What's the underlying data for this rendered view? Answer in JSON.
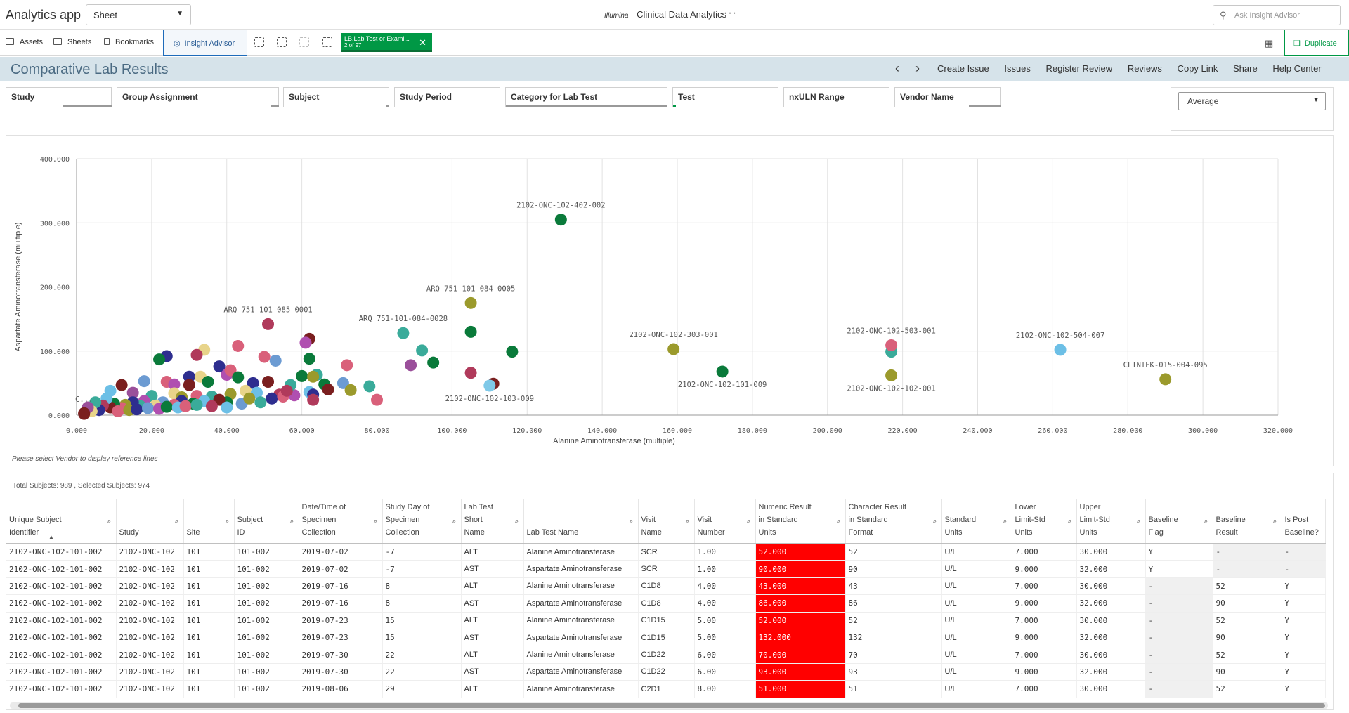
{
  "topbar": {
    "app_title": "Analytics app",
    "sheet_select": "Sheet",
    "logo": "Illumina",
    "center_title": "Clinical Data Analytics",
    "more": "···",
    "ask_placeholder": "Ask Insight Advisor"
  },
  "toolbar": {
    "assets": "Assets",
    "sheets": "Sheets",
    "bookmarks": "Bookmarks",
    "insight_advisor": "Insight Advisor",
    "selection_chip": {
      "title": "LB.Lab Test or Exami...",
      "sub": "2 of 97"
    },
    "duplicate": "Duplicate"
  },
  "sheet": {
    "title": "Comparative Lab Results",
    "links": [
      "Create Issue",
      "Issues",
      "Register Review",
      "Reviews",
      "Copy Link",
      "Share",
      "Help Center"
    ]
  },
  "filters": [
    "Study",
    "Group Assignment",
    "Subject",
    "Study Period",
    "Category for Lab Test",
    "Test",
    "nxULN Range",
    "Vendor Name"
  ],
  "aggregation": {
    "selected": "Average"
  },
  "chart_data": {
    "type": "scatter",
    "xlabel": "Alanine Aminotransferase (multiple)",
    "ylabel": "Aspartate Aminotransferase (multiple)",
    "xlim": [
      0,
      320
    ],
    "ylim": [
      0,
      400
    ],
    "x_ticks": [
      "0.000",
      "20.000",
      "40.000",
      "60.000",
      "80.000",
      "100.000",
      "120.000",
      "140.000",
      "160.000",
      "180.000",
      "200.000",
      "220.000",
      "240.000",
      "260.000",
      "280.000",
      "300.000",
      "320.000"
    ],
    "y_ticks": [
      "0.000",
      "100.000",
      "200.000",
      "300.000",
      "400.000"
    ],
    "grid": true,
    "labeled_points": [
      {
        "label": "2102-ONC-102-402-002",
        "x": 129,
        "y": 305,
        "color": "#0a7a3a",
        "label_pos": "above"
      },
      {
        "label": "ARQ 751-101-085-0001",
        "x": 51,
        "y": 142,
        "color": "#b03a5b",
        "label_pos": "above"
      },
      {
        "label": "ARQ 751-101-084-0028",
        "x": 87,
        "y": 128,
        "color": "#3aab9a",
        "label_pos": "above"
      },
      {
        "label": "ARQ 751-101-084-0005",
        "x": 105,
        "y": 175,
        "color": "#9b9a2c",
        "label_pos": "above"
      },
      {
        "label": "2102-ONC-102-303-001",
        "x": 159,
        "y": 103,
        "color": "#9b9a2c",
        "label_pos": "above"
      },
      {
        "label": "2102-ONC-102-101-009",
        "x": 172,
        "y": 68,
        "color": "#0a7a3a",
        "label_pos": "below"
      },
      {
        "label": "2102-ONC-102-103-009",
        "x": 110,
        "y": 46,
        "color": "#7fc9e8",
        "label_pos": "below"
      },
      {
        "label": "2102-ONC-102-503-001",
        "x": 217,
        "y": 109,
        "color": "#d9607a",
        "label_pos": "above"
      },
      {
        "label": "2102-ONC-102-102-001",
        "x": 217,
        "y": 62,
        "color": "#9b9a2c",
        "label_pos": "below"
      },
      {
        "label": "2102-ONC-102-504-007",
        "x": 262,
        "y": 102,
        "color": "#6cbfe6",
        "label_pos": "above"
      },
      {
        "label": "CLINTEK-015-004-095",
        "x": 290,
        "y": 56,
        "color": "#9b9a2c",
        "label_pos": "above"
      },
      {
        "label": "C...",
        "x": 2,
        "y": 2,
        "color": "#7a1f1f",
        "label_pos": "above"
      }
    ],
    "points": [
      {
        "x": 217,
        "y": 99,
        "color": "#3aab9a"
      },
      {
        "x": 105,
        "y": 130,
        "color": "#0a7a3a"
      },
      {
        "x": 116,
        "y": 99,
        "color": "#0a7a3a"
      },
      {
        "x": 92,
        "y": 101,
        "color": "#3aab9a"
      },
      {
        "x": 95,
        "y": 82,
        "color": "#0a7a3a"
      },
      {
        "x": 89,
        "y": 78,
        "color": "#9a4f9a"
      },
      {
        "x": 105,
        "y": 66,
        "color": "#b03a5b"
      },
      {
        "x": 111,
        "y": 49,
        "color": "#7a1f1f"
      },
      {
        "x": 62,
        "y": 119,
        "color": "#7a1f1f"
      },
      {
        "x": 61,
        "y": 113,
        "color": "#b04fb0"
      },
      {
        "x": 62,
        "y": 88,
        "color": "#0a7a3a"
      },
      {
        "x": 72,
        "y": 78,
        "color": "#d9607a"
      },
      {
        "x": 78,
        "y": 45,
        "color": "#3aab9a"
      },
      {
        "x": 80,
        "y": 24,
        "color": "#d9607a"
      },
      {
        "x": 71,
        "y": 50,
        "color": "#6c9bd2"
      },
      {
        "x": 73,
        "y": 39,
        "color": "#9b9a2c"
      },
      {
        "x": 64,
        "y": 63,
        "color": "#3aab9a"
      },
      {
        "x": 60,
        "y": 61,
        "color": "#0a7a3a"
      },
      {
        "x": 63,
        "y": 60,
        "color": "#9b9a2c"
      },
      {
        "x": 66,
        "y": 48,
        "color": "#0a7a3a"
      },
      {
        "x": 67,
        "y": 40,
        "color": "#7a1f1f"
      },
      {
        "x": 62,
        "y": 36,
        "color": "#6cbfe6"
      },
      {
        "x": 58,
        "y": 31,
        "color": "#b04fb0"
      },
      {
        "x": 63,
        "y": 32,
        "color": "#2e2e8f"
      },
      {
        "x": 63,
        "y": 24,
        "color": "#b03a5b"
      },
      {
        "x": 50,
        "y": 91,
        "color": "#d9607a"
      },
      {
        "x": 53,
        "y": 85,
        "color": "#6c9bd2"
      },
      {
        "x": 43,
        "y": 108,
        "color": "#d9607a"
      },
      {
        "x": 34,
        "y": 102,
        "color": "#e8d48a"
      },
      {
        "x": 32,
        "y": 94,
        "color": "#b03a5b"
      },
      {
        "x": 38,
        "y": 76,
        "color": "#2e2e8f"
      },
      {
        "x": 40,
        "y": 63,
        "color": "#b04fb0"
      },
      {
        "x": 41,
        "y": 70,
        "color": "#d9607a"
      },
      {
        "x": 43,
        "y": 59,
        "color": "#0a7a3a"
      },
      {
        "x": 47,
        "y": 50,
        "color": "#2e2e8f"
      },
      {
        "x": 51,
        "y": 52,
        "color": "#7a1f1f"
      },
      {
        "x": 24,
        "y": 92,
        "color": "#2e2e8f"
      },
      {
        "x": 22,
        "y": 87,
        "color": "#0a7a3a"
      },
      {
        "x": 24,
        "y": 52,
        "color": "#d9607a"
      },
      {
        "x": 30,
        "y": 60,
        "color": "#2e2e8f"
      },
      {
        "x": 33,
        "y": 60,
        "color": "#e8d48a"
      },
      {
        "x": 26,
        "y": 48,
        "color": "#b04fb0"
      },
      {
        "x": 30,
        "y": 47,
        "color": "#7a1f1f"
      },
      {
        "x": 35,
        "y": 52,
        "color": "#0a7a3a"
      },
      {
        "x": 18,
        "y": 53,
        "color": "#6c9bd2"
      },
      {
        "x": 12,
        "y": 47,
        "color": "#7a1f1f"
      },
      {
        "x": 9,
        "y": 38,
        "color": "#6cbfe6"
      },
      {
        "x": 15,
        "y": 35,
        "color": "#9a4f9a"
      },
      {
        "x": 20,
        "y": 30,
        "color": "#3aab9a"
      },
      {
        "x": 26,
        "y": 34,
        "color": "#e8d48a"
      },
      {
        "x": 28,
        "y": 28,
        "color": "#9b9a2c"
      },
      {
        "x": 32,
        "y": 30,
        "color": "#d9607a"
      },
      {
        "x": 36,
        "y": 29,
        "color": "#3aab9a"
      },
      {
        "x": 41,
        "y": 33,
        "color": "#9b9a2c"
      },
      {
        "x": 45,
        "y": 38,
        "color": "#e8d48a"
      },
      {
        "x": 48,
        "y": 35,
        "color": "#6cbfe6"
      },
      {
        "x": 54,
        "y": 32,
        "color": "#b03a5b"
      },
      {
        "x": 52,
        "y": 26,
        "color": "#2e2e8f"
      },
      {
        "x": 49,
        "y": 20,
        "color": "#3aab9a"
      },
      {
        "x": 44,
        "y": 18,
        "color": "#6c9bd2"
      },
      {
        "x": 40,
        "y": 20,
        "color": "#0a7a3a"
      },
      {
        "x": 38,
        "y": 24,
        "color": "#7a1f1f"
      },
      {
        "x": 34,
        "y": 22,
        "color": "#6cbfe6"
      },
      {
        "x": 31,
        "y": 18,
        "color": "#0a7a3a"
      },
      {
        "x": 28,
        "y": 22,
        "color": "#2e2e8f"
      },
      {
        "x": 26,
        "y": 16,
        "color": "#d9607a"
      },
      {
        "x": 23,
        "y": 20,
        "color": "#6c9bd2"
      },
      {
        "x": 21,
        "y": 15,
        "color": "#e8d48a"
      },
      {
        "x": 18,
        "y": 22,
        "color": "#b04fb0"
      },
      {
        "x": 17,
        "y": 14,
        "color": "#3aab9a"
      },
      {
        "x": 15,
        "y": 20,
        "color": "#2e2e8f"
      },
      {
        "x": 13,
        "y": 16,
        "color": "#9b9a2c"
      },
      {
        "x": 12,
        "y": 11,
        "color": "#d9607a"
      },
      {
        "x": 10,
        "y": 18,
        "color": "#0a7a3a"
      },
      {
        "x": 9,
        "y": 12,
        "color": "#7a1f1f"
      },
      {
        "x": 8,
        "y": 26,
        "color": "#6cbfe6"
      },
      {
        "x": 7,
        "y": 15,
        "color": "#b03a5b"
      },
      {
        "x": 6,
        "y": 8,
        "color": "#2e2e8f"
      },
      {
        "x": 5,
        "y": 20,
        "color": "#3aab9a"
      },
      {
        "x": 4,
        "y": 6,
        "color": "#e8d48a"
      },
      {
        "x": 3,
        "y": 12,
        "color": "#9a4f9a"
      },
      {
        "x": 2,
        "y": 3,
        "color": "#7a1f1f"
      },
      {
        "x": 11,
        "y": 6,
        "color": "#d9607a"
      },
      {
        "x": 14,
        "y": 8,
        "color": "#9b9a2c"
      },
      {
        "x": 16,
        "y": 9,
        "color": "#2e2e8f"
      },
      {
        "x": 19,
        "y": 11,
        "color": "#6c9bd2"
      },
      {
        "x": 22,
        "y": 10,
        "color": "#b04fb0"
      },
      {
        "x": 24,
        "y": 13,
        "color": "#0a7a3a"
      },
      {
        "x": 27,
        "y": 12,
        "color": "#6cbfe6"
      },
      {
        "x": 29,
        "y": 14,
        "color": "#d9607a"
      },
      {
        "x": 32,
        "y": 16,
        "color": "#3aab9a"
      },
      {
        "x": 36,
        "y": 14,
        "color": "#b03a5b"
      },
      {
        "x": 40,
        "y": 12,
        "color": "#6cbfe6"
      },
      {
        "x": 46,
        "y": 26,
        "color": "#9b9a2c"
      },
      {
        "x": 55,
        "y": 29,
        "color": "#d9607a"
      },
      {
        "x": 57,
        "y": 47,
        "color": "#3aab9a"
      },
      {
        "x": 56,
        "y": 38,
        "color": "#b03a5b"
      }
    ]
  },
  "chart_note": "Please select Vendor to display reference lines",
  "table": {
    "totals": "Total Subjects: 989 , Selected Subjects: 974",
    "columns": [
      {
        "label": "Unique Subject Identifier",
        "lines": [
          "Unique Subject",
          "Identifier"
        ],
        "search": true
      },
      {
        "label": "Study",
        "lines": [
          "Study"
        ],
        "search": true
      },
      {
        "label": "Site",
        "lines": [
          "Site"
        ],
        "search": true
      },
      {
        "label": "Subject ID",
        "lines": [
          "Subject",
          "ID"
        ],
        "search": true
      },
      {
        "label": "Date/Time of Specimen Collection",
        "lines": [
          "Date/Time of",
          "Specimen",
          "Collection"
        ],
        "search": true
      },
      {
        "label": "Study Day of Specimen Collection",
        "lines": [
          "Study Day of",
          "Specimen",
          "Collection"
        ],
        "search": true
      },
      {
        "label": "Lab Test Short Name",
        "lines": [
          "Lab Test",
          "Short",
          "Name"
        ],
        "search": true
      },
      {
        "label": "Lab Test Name",
        "lines": [
          "Lab Test Name"
        ],
        "search": true
      },
      {
        "label": "Visit Name",
        "lines": [
          "Visit",
          "Name"
        ],
        "search": true
      },
      {
        "label": "Visit Number",
        "lines": [
          "Visit",
          "Number"
        ],
        "search": true
      },
      {
        "label": "Numeric Result in Standard Units",
        "lines": [
          "Numeric Result",
          "in Standard",
          "Units"
        ],
        "search": true
      },
      {
        "label": "Character Result in Standard Format",
        "lines": [
          "Character Result",
          "in Standard",
          "Format"
        ],
        "search": true
      },
      {
        "label": "Standard Units",
        "lines": [
          "Standard",
          "Units"
        ],
        "search": true
      },
      {
        "label": "Lower Limit-Std Units",
        "lines": [
          "Lower",
          "Limit-Std",
          "Units"
        ],
        "search": true
      },
      {
        "label": "Upper Limit-Std Units",
        "lines": [
          "Upper",
          "Limit-Std",
          "Units"
        ],
        "search": true
      },
      {
        "label": "Baseline Flag",
        "lines": [
          "Baseline",
          "Flag"
        ],
        "search": true
      },
      {
        "label": "Baseline Result",
        "lines": [
          "Baseline",
          "Result"
        ],
        "search": true
      },
      {
        "label": "Is Post Baseline?",
        "lines": [
          "Is Post",
          "Baseline?"
        ],
        "search": false
      }
    ],
    "rows": [
      [
        "2102-ONC-102-101-002",
        "2102-ONC-102",
        "101",
        "101-002",
        "2019-07-02",
        "-7",
        "ALT",
        "Alanine Aminotransferase",
        "SCR",
        "1.00",
        "52.000",
        "52",
        "U/L",
        "7.000",
        "30.000",
        "Y",
        "-",
        "-"
      ],
      [
        "2102-ONC-102-101-002",
        "2102-ONC-102",
        "101",
        "101-002",
        "2019-07-02",
        "-7",
        "AST",
        "Aspartate Aminotransferase",
        "SCR",
        "1.00",
        "90.000",
        "90",
        "U/L",
        "9.000",
        "32.000",
        "Y",
        "-",
        "-"
      ],
      [
        "2102-ONC-102-101-002",
        "2102-ONC-102",
        "101",
        "101-002",
        "2019-07-16",
        "8",
        "ALT",
        "Alanine Aminotransferase",
        "C1D8",
        "4.00",
        "43.000",
        "43",
        "U/L",
        "7.000",
        "30.000",
        "-",
        "52",
        "Y"
      ],
      [
        "2102-ONC-102-101-002",
        "2102-ONC-102",
        "101",
        "101-002",
        "2019-07-16",
        "8",
        "AST",
        "Aspartate Aminotransferase",
        "C1D8",
        "4.00",
        "86.000",
        "86",
        "U/L",
        "9.000",
        "32.000",
        "-",
        "90",
        "Y"
      ],
      [
        "2102-ONC-102-101-002",
        "2102-ONC-102",
        "101",
        "101-002",
        "2019-07-23",
        "15",
        "ALT",
        "Alanine Aminotransferase",
        "C1D15",
        "5.00",
        "52.000",
        "52",
        "U/L",
        "7.000",
        "30.000",
        "-",
        "52",
        "Y"
      ],
      [
        "2102-ONC-102-101-002",
        "2102-ONC-102",
        "101",
        "101-002",
        "2019-07-23",
        "15",
        "AST",
        "Aspartate Aminotransferase",
        "C1D15",
        "5.00",
        "132.000",
        "132",
        "U/L",
        "9.000",
        "32.000",
        "-",
        "90",
        "Y"
      ],
      [
        "2102-ONC-102-101-002",
        "2102-ONC-102",
        "101",
        "101-002",
        "2019-07-30",
        "22",
        "ALT",
        "Alanine Aminotransferase",
        "C1D22",
        "6.00",
        "70.000",
        "70",
        "U/L",
        "7.000",
        "30.000",
        "-",
        "52",
        "Y"
      ],
      [
        "2102-ONC-102-101-002",
        "2102-ONC-102",
        "101",
        "101-002",
        "2019-07-30",
        "22",
        "AST",
        "Aspartate Aminotransferase",
        "C1D22",
        "6.00",
        "93.000",
        "93",
        "U/L",
        "9.000",
        "32.000",
        "-",
        "90",
        "Y"
      ],
      [
        "2102-ONC-102-101-002",
        "2102-ONC-102",
        "101",
        "101-002",
        "2019-08-06",
        "29",
        "ALT",
        "Alanine Aminotransferase",
        "C2D1",
        "8.00",
        "51.000",
        "51",
        "U/L",
        "7.000",
        "30.000",
        "-",
        "52",
        "Y"
      ]
    ],
    "highlight_color": "#ff0000"
  }
}
